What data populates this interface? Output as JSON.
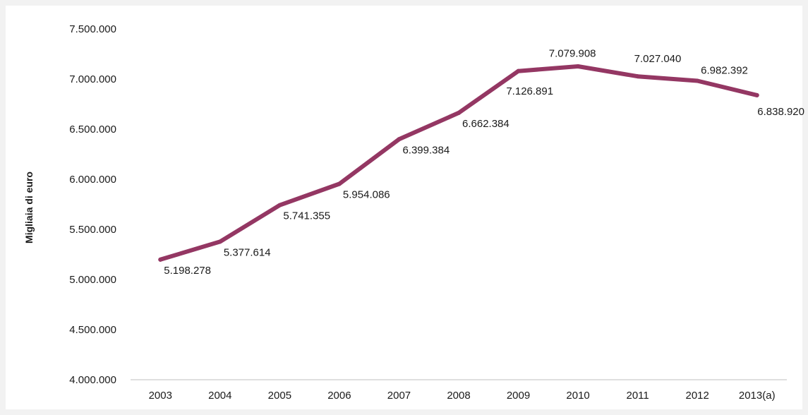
{
  "chart_data": {
    "type": "line",
    "title": "",
    "xlabel": "",
    "ylabel": "Migliaia di euro",
    "ylim": [
      4000000,
      7500000
    ],
    "yticks": [
      4000000,
      4500000,
      5000000,
      5500000,
      6000000,
      6500000,
      7000000,
      7500000
    ],
    "ytick_labels": [
      "4.000.000",
      "4.500.000",
      "5.000.000",
      "5.500.000",
      "6.000.000",
      "6.500.000",
      "7.000.000",
      "7.500.000"
    ],
    "categories": [
      "2003",
      "2004",
      "2005",
      "2006",
      "2007",
      "2008",
      "2009",
      "2010",
      "2011",
      "2012",
      "2013(a)"
    ],
    "values": [
      5198278,
      5377614,
      5741355,
      5954086,
      6399384,
      6662384,
      7079908,
      7126891,
      7027040,
      6982392,
      6838920
    ],
    "data_labels": [
      "5.198.278",
      "5.377.614",
      "5.741.355",
      "5.954.086",
      "6.399.384",
      "6.662.384",
      "7.079.908",
      "7.126.891",
      "7.027.040",
      "6.982.392",
      "6.838.920"
    ],
    "grid": false,
    "legend": "none",
    "line_color": "#943763"
  }
}
